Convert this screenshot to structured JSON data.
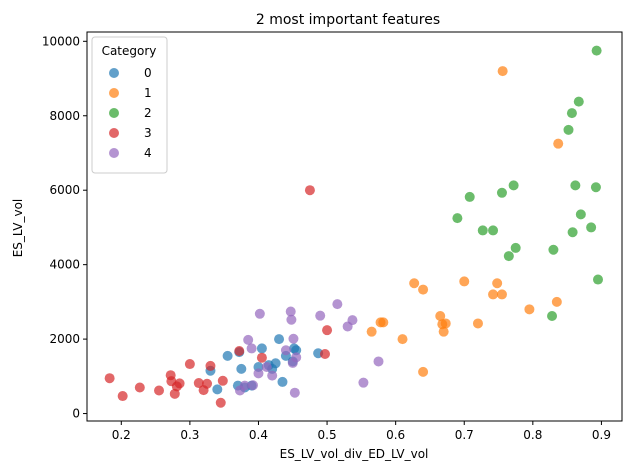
{
  "chart_data": {
    "type": "scatter",
    "title": "2 most important features",
    "xlabel": "ES_LV_vol_div_ED_LV_vol",
    "ylabel": "ES_LV_vol",
    "xlim": [
      0.15,
      0.93
    ],
    "ylim": [
      -200,
      10250
    ],
    "xticks": [
      0.2,
      0.3,
      0.4,
      0.5,
      0.6,
      0.7,
      0.8,
      0.9
    ],
    "yticks": [
      0,
      2000,
      4000,
      6000,
      8000,
      10000
    ],
    "xtick_labels": [
      "0.2",
      "0.3",
      "0.4",
      "0.5",
      "0.6",
      "0.7",
      "0.8",
      "0.9"
    ],
    "ytick_labels": [
      "0",
      "2000",
      "4000",
      "6000",
      "8000",
      "10000"
    ],
    "legend": {
      "title": "Category",
      "placement": "upper-left"
    },
    "series": [
      {
        "name": "0",
        "color": "#1f77b4",
        "points": [
          [
            0.33,
            1150
          ],
          [
            0.34,
            650
          ],
          [
            0.355,
            1550
          ],
          [
            0.37,
            750
          ],
          [
            0.372,
            1650
          ],
          [
            0.375,
            1200
          ],
          [
            0.38,
            700
          ],
          [
            0.39,
            750
          ],
          [
            0.4,
            1250
          ],
          [
            0.405,
            1750
          ],
          [
            0.415,
            1300
          ],
          [
            0.42,
            1200
          ],
          [
            0.425,
            1350
          ],
          [
            0.43,
            2000
          ],
          [
            0.435,
            850
          ],
          [
            0.44,
            1550
          ],
          [
            0.45,
            1400
          ],
          [
            0.452,
            1750
          ],
          [
            0.455,
            1700
          ],
          [
            0.487,
            1620
          ]
        ]
      },
      {
        "name": "1",
        "color": "#ff7f0e",
        "points": [
          [
            0.565,
            2200
          ],
          [
            0.578,
            2450
          ],
          [
            0.582,
            2450
          ],
          [
            0.61,
            2000
          ],
          [
            0.627,
            3500
          ],
          [
            0.64,
            3330
          ],
          [
            0.64,
            1120
          ],
          [
            0.665,
            2620
          ],
          [
            0.668,
            2400
          ],
          [
            0.67,
            2200
          ],
          [
            0.673,
            2420
          ],
          [
            0.7,
            3550
          ],
          [
            0.72,
            2420
          ],
          [
            0.742,
            3200
          ],
          [
            0.748,
            3500
          ],
          [
            0.755,
            3200
          ],
          [
            0.756,
            9200
          ],
          [
            0.795,
            2800
          ],
          [
            0.835,
            3000
          ],
          [
            0.837,
            7250
          ]
        ]
      },
      {
        "name": "2",
        "color": "#2ca02c",
        "points": [
          [
            0.69,
            5250
          ],
          [
            0.708,
            5820
          ],
          [
            0.727,
            4920
          ],
          [
            0.742,
            4920
          ],
          [
            0.755,
            5930
          ],
          [
            0.765,
            4230
          ],
          [
            0.772,
            6130
          ],
          [
            0.775,
            4450
          ],
          [
            0.828,
            2620
          ],
          [
            0.83,
            4400
          ],
          [
            0.852,
            7620
          ],
          [
            0.857,
            8070
          ],
          [
            0.858,
            4870
          ],
          [
            0.862,
            6130
          ],
          [
            0.867,
            8380
          ],
          [
            0.87,
            5350
          ],
          [
            0.885,
            5000
          ],
          [
            0.892,
            6080
          ],
          [
            0.893,
            9750
          ],
          [
            0.895,
            3600
          ]
        ]
      },
      {
        "name": "3",
        "color": "#d62728",
        "points": [
          [
            0.183,
            950
          ],
          [
            0.202,
            470
          ],
          [
            0.227,
            700
          ],
          [
            0.255,
            620
          ],
          [
            0.272,
            1030
          ],
          [
            0.273,
            870
          ],
          [
            0.278,
            530
          ],
          [
            0.281,
            730
          ],
          [
            0.285,
            810
          ],
          [
            0.3,
            1330
          ],
          [
            0.313,
            820
          ],
          [
            0.32,
            630
          ],
          [
            0.325,
            800
          ],
          [
            0.33,
            1280
          ],
          [
            0.345,
            290
          ],
          [
            0.348,
            880
          ],
          [
            0.372,
            1680
          ],
          [
            0.405,
            1500
          ],
          [
            0.475,
            6000
          ],
          [
            0.497,
            1600
          ],
          [
            0.5,
            2240
          ]
        ]
      },
      {
        "name": "4",
        "color": "#9467bd",
        "points": [
          [
            0.373,
            620
          ],
          [
            0.38,
            750
          ],
          [
            0.385,
            1980
          ],
          [
            0.39,
            1750
          ],
          [
            0.392,
            760
          ],
          [
            0.4,
            1080
          ],
          [
            0.402,
            2680
          ],
          [
            0.412,
            1250
          ],
          [
            0.42,
            1020
          ],
          [
            0.44,
            1700
          ],
          [
            0.447,
            2740
          ],
          [
            0.448,
            2520
          ],
          [
            0.45,
            1360
          ],
          [
            0.451,
            2010
          ],
          [
            0.453,
            560
          ],
          [
            0.455,
            1510
          ],
          [
            0.49,
            2630
          ],
          [
            0.515,
            2940
          ],
          [
            0.53,
            2340
          ],
          [
            0.537,
            2510
          ],
          [
            0.553,
            830
          ],
          [
            0.575,
            1400
          ]
        ]
      }
    ]
  }
}
